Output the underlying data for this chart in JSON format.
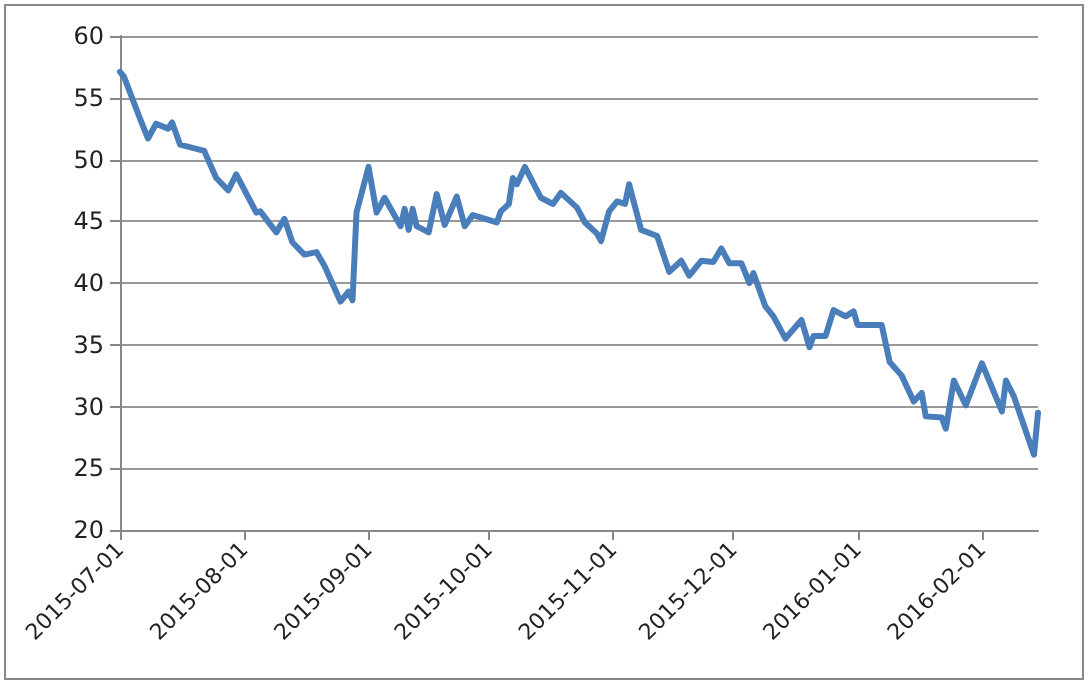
{
  "chart_data": {
    "type": "line",
    "x": [
      "2015-07-01",
      "2015-07-02",
      "2015-07-06",
      "2015-07-08",
      "2015-07-10",
      "2015-07-13",
      "2015-07-14",
      "2015-07-16",
      "2015-07-22",
      "2015-07-25",
      "2015-07-28",
      "2015-07-30",
      "2015-08-04",
      "2015-08-05",
      "2015-08-09",
      "2015-08-11",
      "2015-08-13",
      "2015-08-16",
      "2015-08-19",
      "2015-08-21",
      "2015-08-25",
      "2015-08-27",
      "2015-08-28",
      "2015-08-29",
      "2015-09-01",
      "2015-09-03",
      "2015-09-05",
      "2015-09-09",
      "2015-09-10",
      "2015-09-11",
      "2015-09-12",
      "2015-09-13",
      "2015-09-16",
      "2015-09-18",
      "2015-09-20",
      "2015-09-23",
      "2015-09-25",
      "2015-09-27",
      "2015-10-03",
      "2015-10-04",
      "2015-10-06",
      "2015-10-07",
      "2015-10-08",
      "2015-10-10",
      "2015-10-14",
      "2015-10-17",
      "2015-10-19",
      "2015-10-23",
      "2015-10-25",
      "2015-10-28",
      "2015-10-29",
      "2015-10-31",
      "2015-11-02",
      "2015-11-04",
      "2015-11-05",
      "2015-11-08",
      "2015-11-12",
      "2015-11-15",
      "2015-11-18",
      "2015-11-20",
      "2015-11-23",
      "2015-11-26",
      "2015-11-28",
      "2015-11-30",
      "2015-12-03",
      "2015-12-05",
      "2015-12-06",
      "2015-12-09",
      "2015-12-11",
      "2015-12-14",
      "2015-12-18",
      "2015-12-20",
      "2015-12-21",
      "2015-12-24",
      "2015-12-26",
      "2015-12-29",
      "2015-12-31",
      "2016-01-01",
      "2016-01-07",
      "2016-01-09",
      "2016-01-12",
      "2016-01-15",
      "2016-01-17",
      "2016-01-18",
      "2016-01-22",
      "2016-01-23",
      "2016-01-25",
      "2016-01-28",
      "2016-02-01",
      "2016-02-06",
      "2016-02-07",
      "2016-02-09",
      "2016-02-14",
      "2016-02-15"
    ],
    "series": [
      {
        "color": "#4a7ebb",
        "values": [
          57.1,
          56.7,
          53.3,
          51.7,
          52.9,
          52.5,
          53.0,
          51.2,
          50.7,
          48.5,
          47.5,
          48.8,
          45.7,
          45.8,
          44.1,
          45.2,
          43.3,
          42.3,
          42.5,
          41.4,
          38.5,
          39.3,
          38.6,
          45.7,
          49.4,
          45.7,
          46.9,
          44.6,
          46.0,
          44.3,
          46.0,
          44.6,
          44.1,
          47.2,
          44.7,
          47.0,
          44.6,
          45.5,
          44.9,
          45.8,
          46.4,
          48.5,
          48.0,
          49.4,
          46.9,
          46.4,
          47.3,
          46.1,
          44.9,
          44.0,
          43.4,
          45.8,
          46.6,
          46.4,
          48.0,
          44.3,
          43.8,
          40.9,
          41.8,
          40.6,
          41.8,
          41.7,
          42.8,
          41.6,
          41.6,
          40.0,
          40.8,
          38.1,
          37.3,
          35.5,
          37.0,
          34.8,
          35.7,
          35.7,
          37.8,
          37.3,
          37.7,
          36.6,
          36.6,
          33.6,
          32.5,
          30.4,
          31.1,
          29.2,
          29.1,
          28.2,
          32.1,
          30.1,
          33.5,
          29.6,
          32.1,
          30.8,
          26.1,
          29.5
        ]
      }
    ],
    "xlim": [
      "2015-07-01",
      "2016-02-15"
    ],
    "xticks": [
      "2015-07-01",
      "2015-08-01",
      "2015-09-01",
      "2015-10-01",
      "2015-11-01",
      "2015-12-01",
      "2016-01-01",
      "2016-02-01"
    ],
    "ylim": [
      20,
      60
    ],
    "yticks": [
      20,
      25,
      30,
      35,
      40,
      45,
      50,
      55,
      60
    ],
    "grid": "y",
    "marker": "none",
    "line_style": "solid"
  }
}
